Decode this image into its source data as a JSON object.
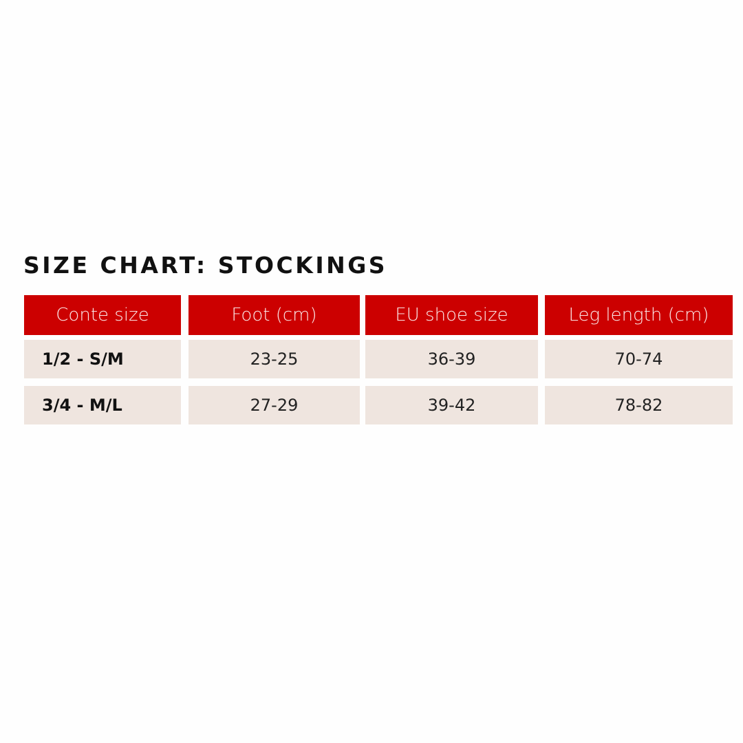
{
  "title": "SIZE CHART: STOCKINGS",
  "colors": {
    "header_bg": "#cc0000",
    "row_bg": "#efe5df",
    "header_text": "#fbe9e9"
  },
  "table": {
    "headers": [
      "Conte size",
      "Foot (cm)",
      "EU shoe size",
      "Leg length (cm)"
    ],
    "rows": [
      [
        "1/2 - S/M",
        "23-25",
        "36-39",
        "70-74"
      ],
      [
        "3/4 - M/L",
        "27-29",
        "39-42",
        "78-82"
      ]
    ]
  }
}
